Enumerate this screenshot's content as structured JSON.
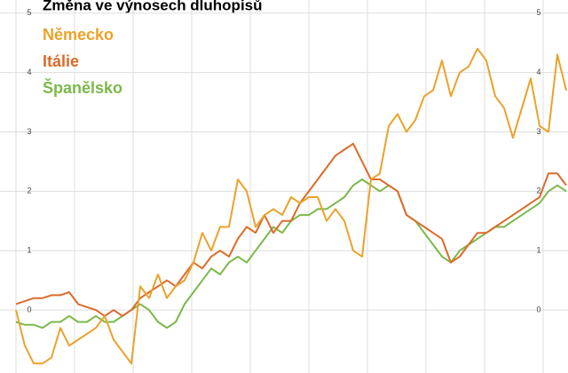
{
  "chart_data": {
    "type": "line",
    "title": "Změna ve výnosech dluhopisů",
    "series": [
      {
        "name": "Německo",
        "color": "#eba22a",
        "values": [
          0,
          -0.6,
          -0.9,
          -0.9,
          -0.8,
          -0.3,
          -0.6,
          -0.5,
          -0.4,
          -0.3,
          -0.1,
          -0.5,
          -0.7,
          -0.9,
          0.4,
          0.2,
          0.6,
          0.2,
          0.4,
          0.5,
          0.8,
          1.3,
          1.0,
          1.4,
          1.4,
          2.2,
          2.0,
          1.4,
          1.6,
          1.7,
          1.6,
          1.9,
          1.8,
          1.9,
          1.9,
          1.5,
          1.7,
          1.5,
          1.0,
          0.9,
          2.2,
          2.3,
          3.1,
          3.3,
          3.0,
          3.2,
          3.6,
          3.7,
          4.2,
          3.6,
          4.0,
          4.1,
          4.4,
          4.2,
          3.6,
          3.4,
          2.9,
          3.4,
          3.9,
          3.1,
          3.0,
          4.3,
          3.7
        ]
      },
      {
        "name": "Itálie",
        "color": "#dc6b2a",
        "values": [
          0.1,
          0.15,
          0.2,
          0.2,
          0.25,
          0.25,
          0.3,
          0.1,
          0.05,
          0.0,
          -0.1,
          0.0,
          -0.1,
          0.0,
          0.2,
          0.3,
          0.4,
          0.5,
          0.4,
          0.6,
          0.8,
          0.7,
          0.9,
          1.0,
          0.9,
          1.2,
          1.4,
          1.3,
          1.6,
          1.3,
          1.5,
          1.5,
          1.8,
          2.0,
          2.2,
          2.4,
          2.6,
          2.7,
          2.8,
          2.5,
          2.2,
          2.2,
          2.1,
          2.0,
          1.6,
          1.5,
          1.4,
          1.3,
          1.2,
          0.8,
          0.9,
          1.1,
          1.3,
          1.3,
          1.4,
          1.5,
          1.6,
          1.7,
          1.8,
          1.9,
          2.3,
          2.3,
          2.1
        ]
      },
      {
        "name": "Španělsko",
        "color": "#7cb84a",
        "values": [
          -0.2,
          -0.25,
          -0.25,
          -0.3,
          -0.2,
          -0.2,
          -0.1,
          -0.2,
          -0.2,
          -0.1,
          -0.2,
          -0.2,
          -0.1,
          0.0,
          0.1,
          0.0,
          -0.2,
          -0.3,
          -0.2,
          0.1,
          0.3,
          0.5,
          0.7,
          0.6,
          0.8,
          0.9,
          0.8,
          1.0,
          1.2,
          1.4,
          1.3,
          1.5,
          1.6,
          1.6,
          1.7,
          1.7,
          1.8,
          1.9,
          2.1,
          2.2,
          2.1,
          2.0,
          2.1,
          2.0,
          1.6,
          1.5,
          1.3,
          1.1,
          0.9,
          0.8,
          1.0,
          1.1,
          1.2,
          1.3,
          1.4,
          1.4,
          1.5,
          1.6,
          1.7,
          1.8,
          2.0,
          2.1,
          2.0
        ]
      }
    ],
    "ylim": [
      -1.06,
      5.22
    ],
    "yticks": [
      0,
      1,
      2,
      3,
      4,
      5
    ],
    "grid": true
  }
}
